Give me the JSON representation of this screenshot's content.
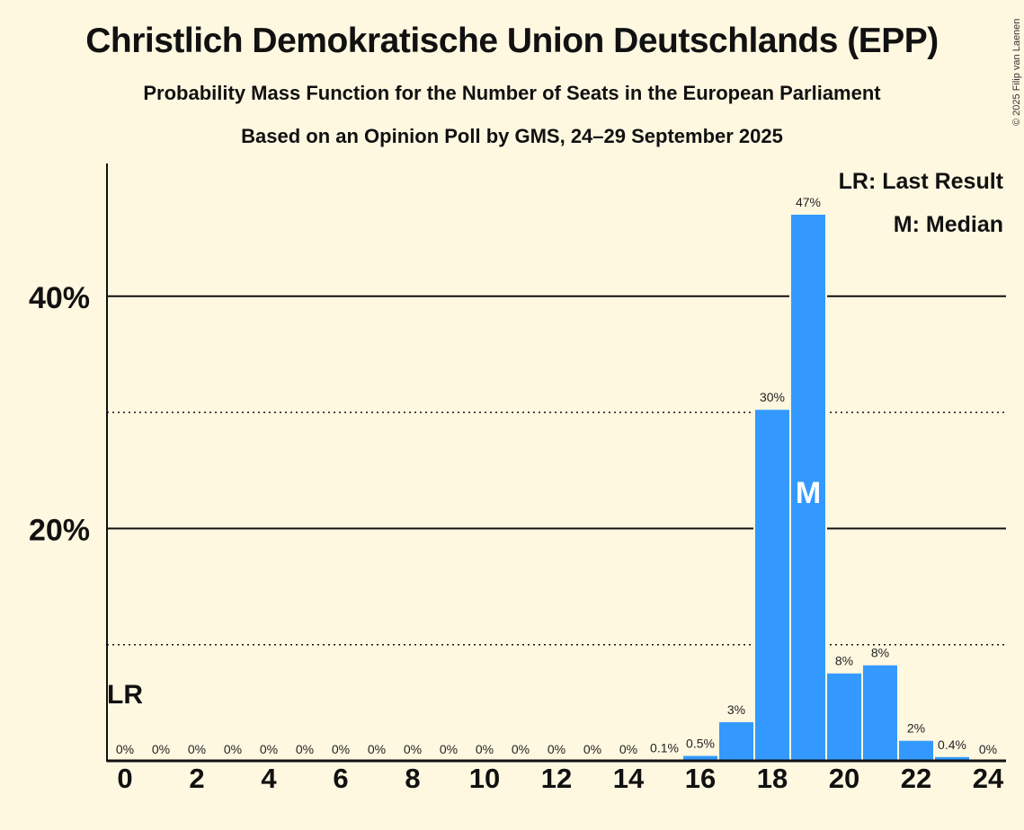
{
  "chart_data": {
    "type": "bar",
    "title": "Christlich Demokratische Union Deutschlands (EPP)",
    "subtitle": "Probability Mass Function for the Number of Seats in the European Parliament",
    "subtitle2": "Based on an Opinion Poll by GMS, 24–29 September 2025",
    "copyright": "© 2025 Filip van Laenen",
    "xlabel": "",
    "ylabel": "",
    "x": [
      0,
      1,
      2,
      3,
      4,
      5,
      6,
      7,
      8,
      9,
      10,
      11,
      12,
      13,
      14,
      15,
      16,
      17,
      18,
      19,
      20,
      21,
      22,
      23,
      24
    ],
    "values": [
      0,
      0,
      0,
      0,
      0,
      0,
      0,
      0,
      0,
      0,
      0,
      0,
      0,
      0,
      0,
      0.1,
      0.5,
      3.4,
      30.3,
      47.1,
      7.6,
      8.3,
      1.8,
      0.4,
      0
    ],
    "labels": [
      "0%",
      "0%",
      "0%",
      "0%",
      "0%",
      "0%",
      "0%",
      "0%",
      "0%",
      "0%",
      "0%",
      "0%",
      "0%",
      "0%",
      "0%",
      "0.1%",
      "0.5%",
      "3%",
      "30%",
      "47%",
      "8%",
      "8%",
      "2%",
      "0.4%",
      "0%"
    ],
    "x_ticks": [
      0,
      2,
      4,
      6,
      8,
      10,
      12,
      14,
      16,
      18,
      20,
      22,
      24
    ],
    "y_ticks": [
      {
        "value": 20,
        "label": "20%"
      },
      {
        "value": 40,
        "label": "40%"
      }
    ],
    "y_minor_gridlines": [
      10,
      30
    ],
    "ylim": [
      0,
      51
    ],
    "last_result_seat": 0,
    "last_result_marker": "LR",
    "median_seat": 19,
    "median_marker": "M",
    "legend": [
      "LR: Last Result",
      "M: Median"
    ],
    "legend_position": "top-right",
    "bar_color": "#3399ff"
  }
}
